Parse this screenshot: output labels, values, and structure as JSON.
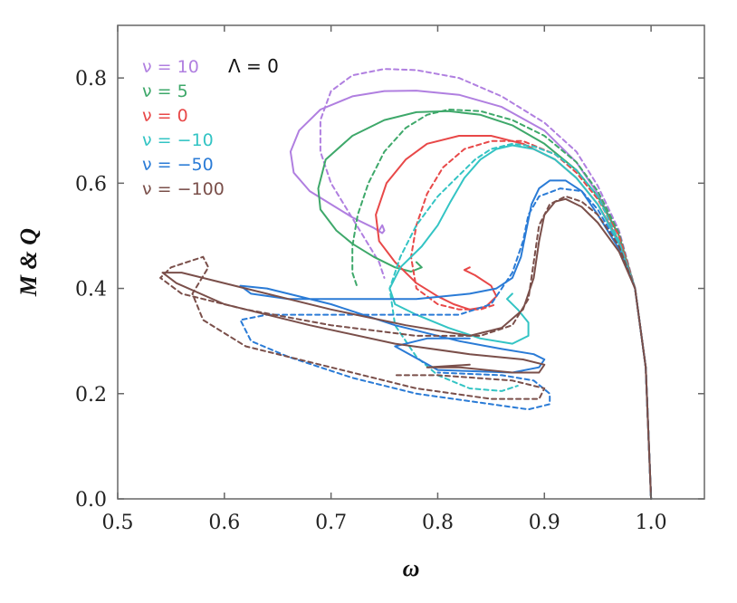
{
  "chart_data": {
    "type": "line",
    "xlabel": "ω",
    "ylabel": "M & Q",
    "xlim": [
      0.5,
      1.05
    ],
    "ylim": [
      0.0,
      0.9
    ],
    "xticks": [
      0.5,
      0.6,
      0.7,
      0.8,
      0.9,
      1.0
    ],
    "xtick_labels": [
      "0.5",
      "0.6",
      "0.7",
      "0.8",
      "0.9",
      "1.0"
    ],
    "yticks": [
      0.0,
      0.2,
      0.4,
      0.6,
      0.8
    ],
    "ytick_labels": [
      "0.0",
      "0.2",
      "0.4",
      "0.6",
      "0.8"
    ],
    "grid": false,
    "legend_position": "top-left",
    "annotation": "Λ = 0",
    "line_styles": {
      "M": "solid",
      "Q": "dashed"
    },
    "series": [
      {
        "name": "ν = 10",
        "color": "#b07fe0",
        "M": [
          [
            1.0,
            0.0
          ],
          [
            0.995,
            0.25
          ],
          [
            0.985,
            0.4
          ],
          [
            0.97,
            0.5
          ],
          [
            0.95,
            0.58
          ],
          [
            0.93,
            0.64
          ],
          [
            0.9,
            0.7
          ],
          [
            0.86,
            0.745
          ],
          [
            0.82,
            0.768
          ],
          [
            0.78,
            0.776
          ],
          [
            0.75,
            0.775
          ],
          [
            0.72,
            0.765
          ],
          [
            0.69,
            0.74
          ],
          [
            0.67,
            0.7
          ],
          [
            0.662,
            0.66
          ],
          [
            0.665,
            0.62
          ],
          [
            0.68,
            0.585
          ],
          [
            0.7,
            0.56
          ],
          [
            0.72,
            0.535
          ],
          [
            0.74,
            0.515
          ],
          [
            0.748,
            0.505
          ],
          [
            0.75,
            0.51
          ],
          [
            0.748,
            0.52
          ],
          [
            0.745,
            0.51
          ]
        ],
        "Q": [
          [
            1.0,
            0.0
          ],
          [
            0.995,
            0.25
          ],
          [
            0.985,
            0.4
          ],
          [
            0.97,
            0.51
          ],
          [
            0.95,
            0.595
          ],
          [
            0.93,
            0.66
          ],
          [
            0.9,
            0.715
          ],
          [
            0.86,
            0.765
          ],
          [
            0.82,
            0.8
          ],
          [
            0.78,
            0.815
          ],
          [
            0.75,
            0.817
          ],
          [
            0.72,
            0.805
          ],
          [
            0.7,
            0.775
          ],
          [
            0.69,
            0.72
          ],
          [
            0.69,
            0.66
          ],
          [
            0.7,
            0.6
          ],
          [
            0.715,
            0.55
          ],
          [
            0.73,
            0.5
          ],
          [
            0.745,
            0.45
          ],
          [
            0.75,
            0.42
          ]
        ]
      },
      {
        "name": "ν = 5",
        "color": "#3ea86a",
        "M": [
          [
            1.0,
            0.0
          ],
          [
            0.995,
            0.25
          ],
          [
            0.985,
            0.4
          ],
          [
            0.97,
            0.5
          ],
          [
            0.95,
            0.575
          ],
          [
            0.93,
            0.625
          ],
          [
            0.9,
            0.675
          ],
          [
            0.87,
            0.71
          ],
          [
            0.84,
            0.73
          ],
          [
            0.81,
            0.737
          ],
          [
            0.78,
            0.735
          ],
          [
            0.75,
            0.72
          ],
          [
            0.72,
            0.69
          ],
          [
            0.695,
            0.645
          ],
          [
            0.688,
            0.59
          ],
          [
            0.69,
            0.55
          ],
          [
            0.705,
            0.51
          ],
          [
            0.72,
            0.485
          ],
          [
            0.74,
            0.46
          ],
          [
            0.76,
            0.44
          ],
          [
            0.775,
            0.432
          ],
          [
            0.785,
            0.44
          ],
          [
            0.78,
            0.45
          ]
        ],
        "Q": [
          [
            1.0,
            0.0
          ],
          [
            0.995,
            0.25
          ],
          [
            0.985,
            0.4
          ],
          [
            0.97,
            0.505
          ],
          [
            0.95,
            0.585
          ],
          [
            0.93,
            0.64
          ],
          [
            0.9,
            0.69
          ],
          [
            0.87,
            0.72
          ],
          [
            0.84,
            0.737
          ],
          [
            0.81,
            0.74
          ],
          [
            0.79,
            0.73
          ],
          [
            0.77,
            0.705
          ],
          [
            0.75,
            0.66
          ],
          [
            0.735,
            0.6
          ],
          [
            0.725,
            0.54
          ],
          [
            0.72,
            0.48
          ],
          [
            0.72,
            0.43
          ],
          [
            0.725,
            0.4
          ]
        ]
      },
      {
        "name": "ν = 0",
        "color": "#e84848",
        "M": [
          [
            1.0,
            0.0
          ],
          [
            0.995,
            0.25
          ],
          [
            0.985,
            0.4
          ],
          [
            0.97,
            0.49
          ],
          [
            0.95,
            0.56
          ],
          [
            0.93,
            0.61
          ],
          [
            0.91,
            0.645
          ],
          [
            0.88,
            0.675
          ],
          [
            0.85,
            0.69
          ],
          [
            0.82,
            0.69
          ],
          [
            0.79,
            0.675
          ],
          [
            0.77,
            0.645
          ],
          [
            0.752,
            0.6
          ],
          [
            0.742,
            0.54
          ],
          [
            0.745,
            0.49
          ],
          [
            0.76,
            0.45
          ],
          [
            0.78,
            0.41
          ],
          [
            0.8,
            0.385
          ],
          [
            0.815,
            0.37
          ],
          [
            0.83,
            0.36
          ],
          [
            0.845,
            0.365
          ],
          [
            0.855,
            0.385
          ],
          [
            0.85,
            0.405
          ],
          [
            0.835,
            0.425
          ],
          [
            0.825,
            0.435
          ],
          [
            0.83,
            0.44
          ]
        ],
        "Q": [
          [
            1.0,
            0.0
          ],
          [
            0.995,
            0.25
          ],
          [
            0.985,
            0.4
          ],
          [
            0.97,
            0.5
          ],
          [
            0.95,
            0.57
          ],
          [
            0.93,
            0.62
          ],
          [
            0.91,
            0.655
          ],
          [
            0.88,
            0.68
          ],
          [
            0.85,
            0.68
          ],
          [
            0.825,
            0.665
          ],
          [
            0.805,
            0.63
          ],
          [
            0.79,
            0.58
          ],
          [
            0.78,
            0.52
          ],
          [
            0.775,
            0.46
          ],
          [
            0.78,
            0.4
          ],
          [
            0.8,
            0.37
          ],
          [
            0.82,
            0.36
          ],
          [
            0.84,
            0.36
          ],
          [
            0.855,
            0.37
          ]
        ]
      },
      {
        "name": "ν = −10",
        "color": "#33c4c4",
        "M": [
          [
            1.0,
            0.0
          ],
          [
            0.995,
            0.25
          ],
          [
            0.985,
            0.4
          ],
          [
            0.97,
            0.485
          ],
          [
            0.95,
            0.56
          ],
          [
            0.93,
            0.61
          ],
          [
            0.91,
            0.645
          ],
          [
            0.89,
            0.665
          ],
          [
            0.87,
            0.672
          ],
          [
            0.855,
            0.665
          ],
          [
            0.84,
            0.645
          ],
          [
            0.825,
            0.61
          ],
          [
            0.812,
            0.565
          ],
          [
            0.8,
            0.52
          ],
          [
            0.785,
            0.48
          ],
          [
            0.765,
            0.44
          ],
          [
            0.755,
            0.4
          ],
          [
            0.76,
            0.37
          ],
          [
            0.78,
            0.35
          ],
          [
            0.81,
            0.325
          ],
          [
            0.84,
            0.305
          ],
          [
            0.87,
            0.295
          ],
          [
            0.885,
            0.31
          ],
          [
            0.885,
            0.335
          ],
          [
            0.875,
            0.36
          ],
          [
            0.865,
            0.38
          ],
          [
            0.87,
            0.39
          ]
        ],
        "Q": [
          [
            1.0,
            0.0
          ],
          [
            0.995,
            0.25
          ],
          [
            0.985,
            0.4
          ],
          [
            0.97,
            0.49
          ],
          [
            0.95,
            0.575
          ],
          [
            0.93,
            0.625
          ],
          [
            0.91,
            0.655
          ],
          [
            0.89,
            0.67
          ],
          [
            0.87,
            0.675
          ],
          [
            0.85,
            0.665
          ],
          [
            0.835,
            0.645
          ],
          [
            0.82,
            0.615
          ],
          [
            0.8,
            0.575
          ],
          [
            0.78,
            0.52
          ],
          [
            0.765,
            0.46
          ],
          [
            0.755,
            0.4
          ],
          [
            0.76,
            0.33
          ],
          [
            0.78,
            0.27
          ],
          [
            0.8,
            0.235
          ],
          [
            0.83,
            0.21
          ],
          [
            0.86,
            0.205
          ],
          [
            0.875,
            0.215
          ]
        ]
      },
      {
        "name": "ν = −50",
        "color": "#2a7bd6",
        "M": [
          [
            1.0,
            0.0
          ],
          [
            0.995,
            0.25
          ],
          [
            0.985,
            0.4
          ],
          [
            0.97,
            0.475
          ],
          [
            0.95,
            0.54
          ],
          [
            0.935,
            0.585
          ],
          [
            0.92,
            0.605
          ],
          [
            0.905,
            0.605
          ],
          [
            0.895,
            0.59
          ],
          [
            0.888,
            0.56
          ],
          [
            0.883,
            0.51
          ],
          [
            0.878,
            0.46
          ],
          [
            0.87,
            0.42
          ],
          [
            0.855,
            0.4
          ],
          [
            0.83,
            0.39
          ],
          [
            0.78,
            0.38
          ],
          [
            0.72,
            0.38
          ],
          [
            0.66,
            0.38
          ],
          [
            0.625,
            0.39
          ],
          [
            0.615,
            0.405
          ],
          [
            0.64,
            0.4
          ],
          [
            0.7,
            0.37
          ],
          [
            0.76,
            0.33
          ],
          [
            0.82,
            0.3
          ],
          [
            0.86,
            0.285
          ],
          [
            0.89,
            0.275
          ],
          [
            0.9,
            0.265
          ],
          [
            0.895,
            0.25
          ],
          [
            0.87,
            0.24
          ],
          [
            0.8,
            0.245
          ],
          [
            0.76,
            0.29
          ],
          [
            0.79,
            0.305
          ],
          [
            0.83,
            0.305
          ]
        ],
        "Q": [
          [
            1.0,
            0.0
          ],
          [
            0.995,
            0.25
          ],
          [
            0.985,
            0.4
          ],
          [
            0.97,
            0.48
          ],
          [
            0.95,
            0.55
          ],
          [
            0.935,
            0.585
          ],
          [
            0.915,
            0.59
          ],
          [
            0.895,
            0.575
          ],
          [
            0.885,
            0.54
          ],
          [
            0.88,
            0.49
          ],
          [
            0.87,
            0.43
          ],
          [
            0.85,
            0.37
          ],
          [
            0.82,
            0.35
          ],
          [
            0.76,
            0.35
          ],
          [
            0.7,
            0.35
          ],
          [
            0.64,
            0.35
          ],
          [
            0.615,
            0.34
          ],
          [
            0.625,
            0.3
          ],
          [
            0.66,
            0.27
          ],
          [
            0.72,
            0.23
          ],
          [
            0.78,
            0.2
          ],
          [
            0.85,
            0.18
          ],
          [
            0.885,
            0.17
          ],
          [
            0.905,
            0.18
          ],
          [
            0.905,
            0.2
          ],
          [
            0.89,
            0.225
          ],
          [
            0.86,
            0.235
          ],
          [
            0.8,
            0.24
          ]
        ]
      },
      {
        "name": "ν = −100",
        "color": "#7a4f4a",
        "M": [
          [
            1.0,
            0.0
          ],
          [
            0.995,
            0.25
          ],
          [
            0.985,
            0.4
          ],
          [
            0.97,
            0.47
          ],
          [
            0.95,
            0.525
          ],
          [
            0.935,
            0.555
          ],
          [
            0.92,
            0.57
          ],
          [
            0.91,
            0.565
          ],
          [
            0.9,
            0.54
          ],
          [
            0.895,
            0.49
          ],
          [
            0.89,
            0.42
          ],
          [
            0.88,
            0.36
          ],
          [
            0.86,
            0.325
          ],
          [
            0.83,
            0.31
          ],
          [
            0.77,
            0.33
          ],
          [
            0.7,
            0.36
          ],
          [
            0.62,
            0.4
          ],
          [
            0.56,
            0.43
          ],
          [
            0.542,
            0.43
          ],
          [
            0.555,
            0.41
          ],
          [
            0.6,
            0.37
          ],
          [
            0.68,
            0.33
          ],
          [
            0.76,
            0.295
          ],
          [
            0.83,
            0.275
          ],
          [
            0.88,
            0.265
          ],
          [
            0.9,
            0.255
          ],
          [
            0.895,
            0.24
          ],
          [
            0.87,
            0.24
          ],
          [
            0.82,
            0.25
          ],
          [
            0.79,
            0.25
          ],
          [
            0.83,
            0.255
          ]
        ],
        "Q": [
          [
            1.0,
            0.0
          ],
          [
            0.995,
            0.25
          ],
          [
            0.985,
            0.4
          ],
          [
            0.97,
            0.48
          ],
          [
            0.95,
            0.54
          ],
          [
            0.935,
            0.565
          ],
          [
            0.92,
            0.575
          ],
          [
            0.905,
            0.56
          ],
          [
            0.895,
            0.52
          ],
          [
            0.89,
            0.45
          ],
          [
            0.885,
            0.38
          ],
          [
            0.87,
            0.33
          ],
          [
            0.84,
            0.31
          ],
          [
            0.78,
            0.31
          ],
          [
            0.7,
            0.33
          ],
          [
            0.62,
            0.36
          ],
          [
            0.56,
            0.39
          ],
          [
            0.54,
            0.42
          ],
          [
            0.55,
            0.44
          ],
          [
            0.58,
            0.46
          ],
          [
            0.585,
            0.44
          ],
          [
            0.57,
            0.39
          ],
          [
            0.58,
            0.34
          ],
          [
            0.62,
            0.29
          ],
          [
            0.7,
            0.25
          ],
          [
            0.78,
            0.21
          ],
          [
            0.85,
            0.19
          ],
          [
            0.895,
            0.19
          ],
          [
            0.9,
            0.21
          ],
          [
            0.87,
            0.225
          ],
          [
            0.8,
            0.235
          ],
          [
            0.76,
            0.235
          ]
        ]
      }
    ]
  }
}
